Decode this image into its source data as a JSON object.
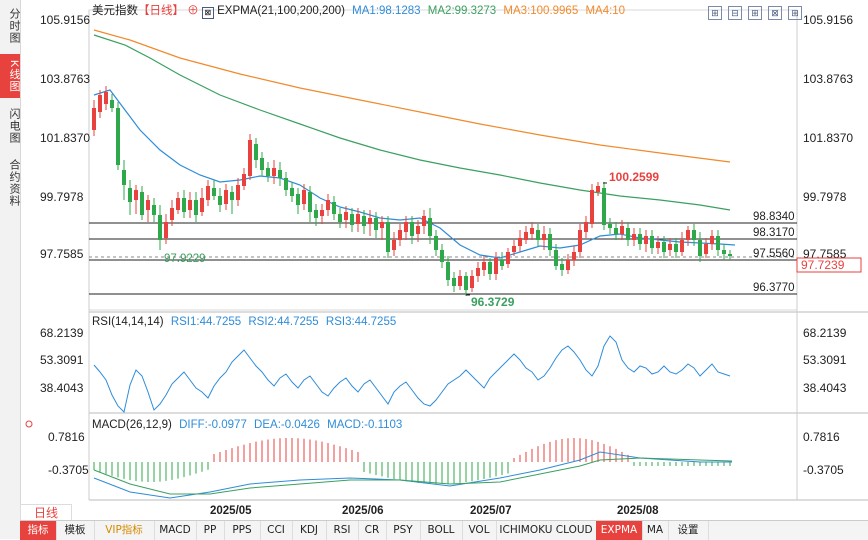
{
  "side_tabs": [
    "分时图",
    "K线图",
    "闪电图",
    "合约资料"
  ],
  "legend": {
    "symbol": "美元指数",
    "period": "【日线】",
    "settings_glyph": "⊕",
    "expma_title": "EXPMA(21,100,200,200)",
    "ma1": "MA1:98.1283",
    "ma2": "MA2:99.3273",
    "ma3": "MA3:100.9965",
    "ma4": "MA4:10"
  },
  "toolbar_buttons": [
    "⊞",
    "⊟",
    "⊞",
    "⊠",
    "⊞"
  ],
  "price_axis": [
    "105.9156",
    "103.8763",
    "101.8370",
    "99.7978",
    "97.7585"
  ],
  "price_marks": {
    "high_label": "100.2599",
    "low_label": "96.3729",
    "left_label": "97.9229",
    "level_1": "98.8340",
    "level_2": "98.3170",
    "level_3": "97.5560",
    "level_4": "96.3770",
    "current": "97.7239"
  },
  "rsi": {
    "title": "RSI(14,14,14)",
    "rsi1": "RSI1:44.7255",
    "rsi2": "RSI2:44.7255",
    "rsi3": "RSI3:44.7255",
    "axis": [
      "68.2139",
      "53.3091",
      "38.4043"
    ]
  },
  "macd": {
    "title": "MACD(26,12,9)",
    "diff": "DIFF:-0.0977",
    "dea": "DEA:-0.0426",
    "macd": "MACD:-0.1103",
    "axis": [
      "0.7816",
      "-0.3705"
    ]
  },
  "dates": [
    "2025/05",
    "2025/06",
    "2025/07",
    "2025/08"
  ],
  "period_button": "日线",
  "bottom_tabs": [
    "指标",
    "模板",
    "VIP指标",
    "MACD",
    "PP",
    "PPS",
    "CCI",
    "KDJ",
    "RSI",
    "CR",
    "PSY",
    "BOLL",
    "VOL",
    "ICHIMOKU CLOUD",
    "EXPMA",
    "MA",
    "设置"
  ],
  "colors": {
    "up": "#e8423f",
    "down": "#2ea84a",
    "ma_blue": "#2f8cd8",
    "ma_green": "#3aa060",
    "ma_orange": "#f08a2c",
    "rsi": "#2f8cd8"
  }
}
